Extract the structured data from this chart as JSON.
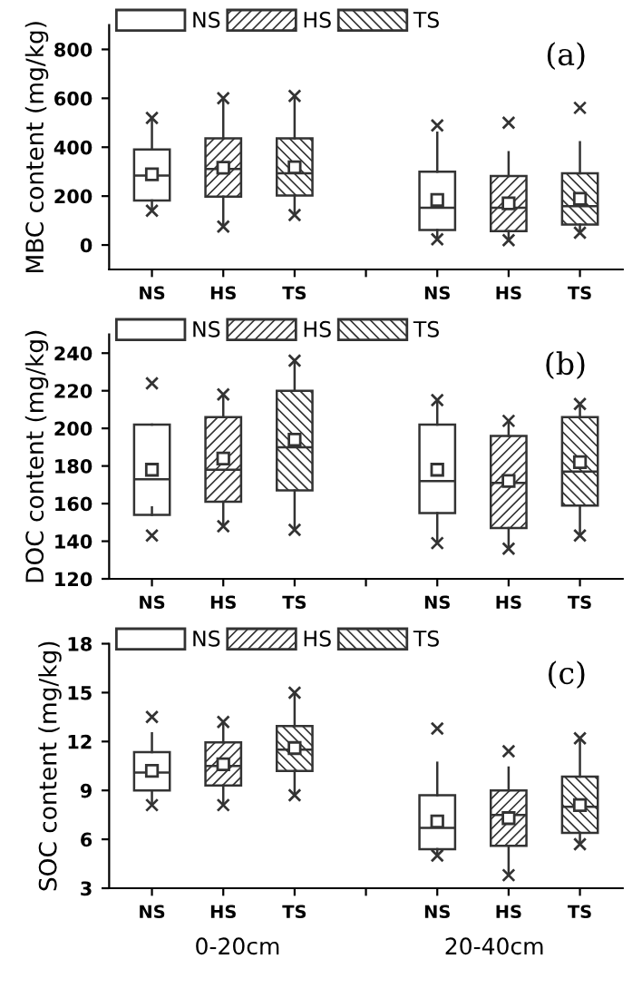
{
  "chart_data": [
    {
      "type": "box",
      "ylabel": "MBC content (mg/kg)",
      "categories": [
        "NS",
        "HS",
        "TS",
        null,
        "NS",
        "HS",
        "TS"
      ],
      "ylim": [
        -100,
        900
      ],
      "yticks": [
        0,
        200,
        400,
        600,
        800
      ],
      "legend": "top left",
      "grid": false,
      "annotations": [
        "(a)"
      ],
      "series": [
        {
          "name": "NS",
          "color": "#ffffff",
          "boxes": [
            {
              "low": 145,
              "q1": 182,
              "median": 284,
              "q3": 391,
              "high": 520,
              "mean": 289,
              "outliers": [
                140,
                520
              ]
            },
            null,
            null,
            null,
            {
              "low": 25,
              "q1": 61,
              "median": 152,
              "q3": 300,
              "high": 459,
              "mean": 184,
              "outliers": [
                23,
                489
              ]
            },
            null,
            null
          ]
        },
        {
          "name": "HS",
          "color": "#333333",
          "boxes": [
            null,
            {
              "low": 75,
              "q1": 198,
              "median": 311,
              "q3": 436,
              "high": 600,
              "mean": 316,
              "outliers": [
                75,
                600
              ]
            },
            null,
            null,
            null,
            {
              "low": 20,
              "q1": 57,
              "median": 152,
              "q3": 282,
              "high": 380,
              "mean": 170,
              "outliers": [
                20,
                500
              ]
            },
            null
          ]
        },
        {
          "name": "TS",
          "color": "#333333",
          "boxes": [
            null,
            null,
            {
              "low": 123,
              "q1": 202,
              "median": 293,
              "q3": 436,
              "high": 610,
              "mean": 318,
              "outliers": [
                123,
                610
              ]
            },
            null,
            null,
            null,
            {
              "low": 50,
              "q1": 84,
              "median": 159,
              "q3": 293,
              "high": 420,
              "mean": 189,
              "outliers": [
                50,
                561
              ]
            }
          ]
        }
      ]
    },
    {
      "type": "box",
      "ylabel": "DOC content (mg/kg)",
      "categories": [
        "NS",
        "HS",
        "TS",
        null,
        "NS",
        "HS",
        "TS"
      ],
      "ylim": [
        120,
        250
      ],
      "yticks": [
        120,
        140,
        160,
        180,
        200,
        220,
        240
      ],
      "legend": "top left",
      "grid": false,
      "annotations": [
        "(b)"
      ],
      "series": [
        {
          "name": "NS",
          "color": "#ffffff",
          "boxes": [
            {
              "low": 158,
              "q1": 154,
              "median": 173,
              "q3": 202,
              "high": 202,
              "mean": 178,
              "outliers": [
                143,
                224
              ]
            },
            null,
            null,
            null,
            {
              "low": 139,
              "q1": 155,
              "median": 172,
              "q3": 202,
              "high": 215,
              "mean": 178,
              "outliers": [
                139,
                215
              ]
            },
            null,
            null
          ]
        },
        {
          "name": "HS",
          "color": "#333333",
          "boxes": [
            null,
            {
              "low": 148,
              "q1": 161,
              "median": 178,
              "q3": 206,
              "high": 218,
              "mean": 184,
              "outliers": [
                148,
                218
              ]
            },
            null,
            null,
            null,
            {
              "low": 136,
              "q1": 147,
              "median": 171,
              "q3": 196,
              "high": 204,
              "mean": 172,
              "outliers": [
                136,
                204
              ]
            },
            null
          ]
        },
        {
          "name": "TS",
          "color": "#333333",
          "boxes": [
            null,
            null,
            {
              "low": 146,
              "q1": 167,
              "median": 190,
              "q3": 220,
              "high": 236,
              "mean": 194,
              "outliers": [
                146,
                236
              ]
            },
            null,
            null,
            null,
            {
              "low": 143,
              "q1": 159,
              "median": 177,
              "q3": 206,
              "high": 213,
              "mean": 182,
              "outliers": [
                143,
                213
              ]
            }
          ]
        }
      ]
    },
    {
      "type": "box",
      "ylabel": "SOC content (mg/kg)",
      "categories": [
        "NS",
        "HS",
        "TS",
        null,
        "NS",
        "HS",
        "TS"
      ],
      "ylim": [
        3,
        18
      ],
      "yticks": [
        3,
        6,
        9,
        12,
        15,
        18
      ],
      "legend": "top left",
      "grid": false,
      "annotations": [
        "(c)",
        "0-20cm",
        "20-40cm"
      ],
      "series": [
        {
          "name": "NS",
          "color": "#ffffff",
          "boxes": [
            {
              "low": 8.1,
              "q1": 9.0,
              "median": 10.1,
              "q3": 11.35,
              "high": 12.5,
              "mean": 10.2,
              "outliers": [
                8.1,
                13.5
              ]
            },
            null,
            null,
            null,
            {
              "low": 5.0,
              "q1": 5.4,
              "median": 6.7,
              "q3": 8.7,
              "high": 10.7,
              "mean": 7.1,
              "outliers": [
                5.0,
                12.8
              ]
            },
            null,
            null
          ]
        },
        {
          "name": "HS",
          "color": "#333333",
          "boxes": [
            null,
            {
              "low": 8.1,
              "q1": 9.3,
              "median": 10.5,
              "q3": 11.95,
              "high": 13.2,
              "mean": 10.6,
              "outliers": [
                8.1,
                13.2
              ]
            },
            null,
            null,
            null,
            {
              "low": 3.8,
              "q1": 5.6,
              "median": 7.5,
              "q3": 9.0,
              "high": 10.4,
              "mean": 7.3,
              "outliers": [
                3.8,
                11.4
              ]
            },
            null
          ]
        },
        {
          "name": "TS",
          "color": "#333333",
          "boxes": [
            null,
            null,
            {
              "low": 8.7,
              "q1": 10.2,
              "median": 11.5,
              "q3": 12.95,
              "high": 15.0,
              "mean": 11.6,
              "outliers": [
                8.7,
                15.0
              ]
            },
            null,
            null,
            null,
            {
              "low": 5.7,
              "q1": 6.4,
              "median": 8.0,
              "q3": 9.85,
              "high": 12.2,
              "mean": 8.1,
              "outliers": [
                5.7,
                12.2
              ]
            }
          ]
        }
      ]
    }
  ]
}
